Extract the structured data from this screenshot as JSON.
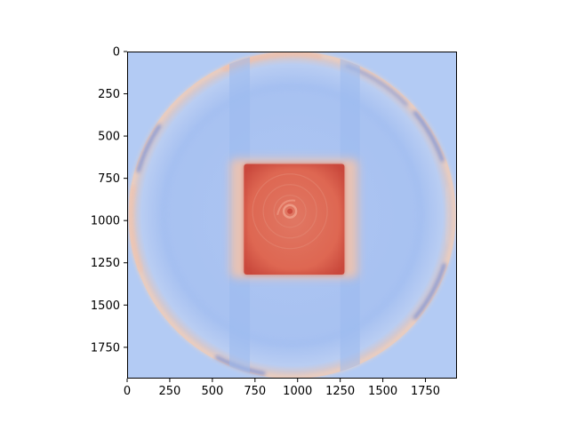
{
  "chart_data": {
    "type": "heatmap",
    "title": "",
    "xlabel": "",
    "ylabel": "",
    "colormap": "coolwarm",
    "x_range": [
      0,
      1935
    ],
    "y_range": [
      1935,
      0
    ],
    "y_inverted": true,
    "x_ticks": [
      0,
      250,
      500,
      750,
      1000,
      1250,
      1500,
      1750
    ],
    "x_tick_labels": [
      "0",
      "250",
      "500",
      "750",
      "1000",
      "1250",
      "1500",
      "1750"
    ],
    "y_ticks": [
      0,
      250,
      500,
      750,
      1000,
      1250,
      1500,
      1750
    ],
    "y_tick_labels": [
      "0",
      "250",
      "500",
      "750",
      "1000",
      "1250",
      "1500",
      "1750"
    ],
    "grid": false,
    "legend": "none",
    "colors": {
      "background": "#b3cbf4",
      "disc": "#aec6f2",
      "ring_warm": "#e8c4b4",
      "ring_cool": "#5b80db",
      "band": "#9ab9ef",
      "band_edge": "#6f97e7",
      "square_halo": "#f0c3ad",
      "square": "#de6752",
      "square_edge": "#c9483c"
    },
    "features": {
      "disc": {
        "center_x": 968,
        "center_y": 968,
        "radius": 960
      },
      "square": {
        "x0": 685,
        "x1": 1275,
        "y0": 665,
        "y1": 1320
      },
      "vertical_bands": [
        {
          "x0": 600,
          "x1": 720
        },
        {
          "x0": 1250,
          "x1": 1365
        }
      ],
      "vortex": {
        "x": 955,
        "y": 945
      }
    }
  }
}
